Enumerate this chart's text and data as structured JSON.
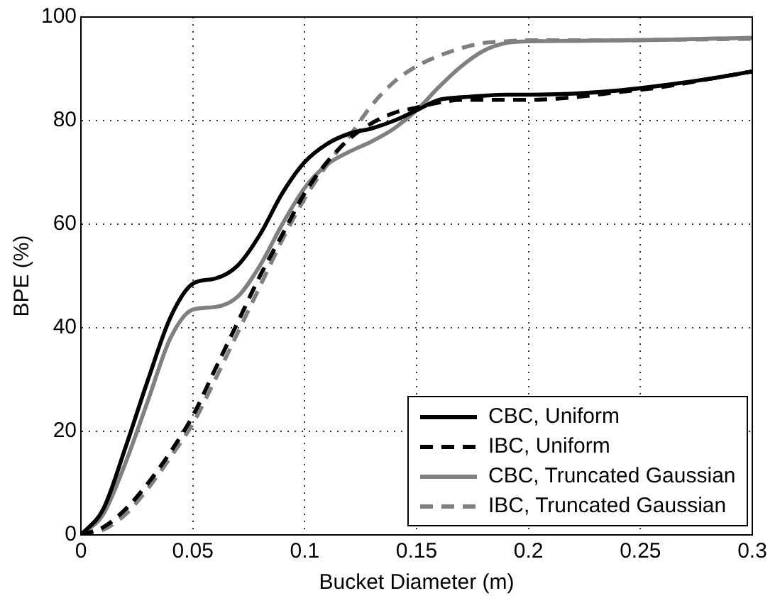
{
  "chart_data": {
    "type": "line",
    "xlabel": "Bucket Diameter (m)",
    "ylabel": "BPE (%)",
    "x": [
      0,
      0.01,
      0.02,
      0.03,
      0.04,
      0.05,
      0.06,
      0.07,
      0.08,
      0.09,
      0.1,
      0.11,
      0.12,
      0.13,
      0.14,
      0.15,
      0.16,
      0.17,
      0.18,
      0.19,
      0.2,
      0.22,
      0.24,
      0.26,
      0.28,
      0.3
    ],
    "series": [
      {
        "name": "CBC, Uniform",
        "color": "#000000",
        "line_style": "solid",
        "values": [
          0,
          5,
          17,
          30,
          42,
          48.5,
          49.5,
          52,
          58,
          66,
          72,
          75.5,
          77.5,
          78.5,
          80,
          82,
          84,
          84.5,
          84.8,
          85,
          85,
          85.2,
          85.8,
          86.8,
          88,
          89.5
        ]
      },
      {
        "name": "IBC, Uniform",
        "color": "#000000",
        "line_style": "dashed",
        "values": [
          0,
          1.5,
          5,
          10,
          16,
          23,
          32,
          41,
          50,
          58,
          66,
          72,
          76.5,
          79.5,
          81.5,
          82.5,
          83.5,
          84,
          84,
          84,
          84,
          84.5,
          85.5,
          86.5,
          88,
          89.5
        ]
      },
      {
        "name": "CBC, Truncated Gaussian",
        "color": "#808080",
        "line_style": "solid",
        "values": [
          0,
          4,
          14,
          26,
          38,
          43.5,
          44,
          46,
          52,
          60,
          67,
          71.5,
          74,
          76,
          78.5,
          82,
          86.5,
          90.5,
          93.5,
          95,
          95.3,
          95.4,
          95.5,
          95.6,
          95.8,
          96
        ]
      },
      {
        "name": "IBC, Truncated Gaussian",
        "color": "#808080",
        "line_style": "dashed",
        "values": [
          0,
          1,
          4,
          9,
          15,
          21.5,
          30,
          39,
          48,
          57,
          65,
          71.5,
          77,
          83,
          87.5,
          90.5,
          92.5,
          94,
          95,
          95.3,
          95.5,
          95.5,
          95.5,
          95.6,
          95.7,
          95.8
        ]
      }
    ],
    "xlim": [
      0,
      0.3
    ],
    "xticks": [
      0,
      0.05,
      0.1,
      0.15,
      0.2,
      0.25,
      0.3
    ],
    "ylim": [
      0,
      100
    ],
    "yticks": [
      0,
      20,
      40,
      60,
      80,
      100
    ],
    "grid": true,
    "legend": "bottom right",
    "marker": "none"
  }
}
